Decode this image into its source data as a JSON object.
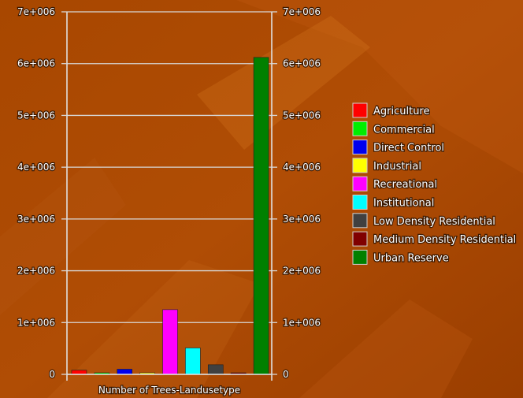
{
  "chart_data": {
    "type": "bar",
    "title": "",
    "xlabel": "Number of Trees-Landusetype",
    "ylabel": "",
    "ylim": [
      0,
      7000000
    ],
    "y_ticks": [
      0,
      1000000,
      2000000,
      3000000,
      4000000,
      5000000,
      6000000,
      7000000
    ],
    "y_tick_labels": [
      "0",
      "1e+006",
      "2e+006",
      "3e+006",
      "4e+006",
      "5e+006",
      "6e+006",
      "7e+006"
    ],
    "grid": true,
    "legend_position": "right",
    "categories": [
      "Agriculture",
      "Commercial",
      "Direct Control",
      "Industrial",
      "Recreational",
      "Institutional",
      "Low Density Residential",
      "Medium Density Residential",
      "Urban Reserve"
    ],
    "values": [
      80000,
      30000,
      100000,
      30000,
      1250000,
      510000,
      185000,
      30000,
      6120000
    ],
    "colors": [
      "#ff0000",
      "#00ee00",
      "#0000ee",
      "#ffff00",
      "#ff00ff",
      "#00ffff",
      "#404040",
      "#800000",
      "#008000"
    ]
  }
}
